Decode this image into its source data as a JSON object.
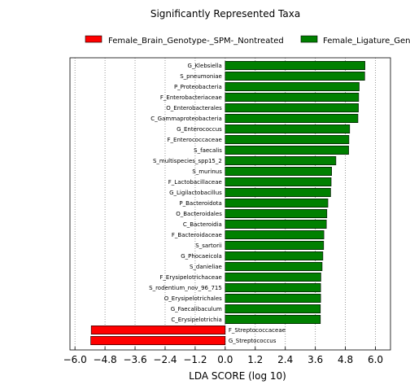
{
  "chart_data": {
    "type": "bar",
    "orientation": "horizontal",
    "title": "Significantly Represented Taxa",
    "xlabel": "LDA SCORE (log 10)",
    "ylabel": "",
    "xlim": [
      -6.2,
      6.6
    ],
    "xticks": [
      "−6.0",
      "−4.8",
      "−3.6",
      "−2.4",
      "−1.2",
      "0.0",
      "1.2",
      "2.4",
      "3.6",
      "4.8",
      "6.0"
    ],
    "xtick_values": [
      -6.0,
      -4.8,
      -3.6,
      -2.4,
      -1.2,
      0.0,
      1.2,
      2.4,
      3.6,
      4.8,
      6.0
    ],
    "grid": "vertical dotted",
    "legend_position": "top",
    "series": [
      {
        "name": "Female_Brain_Genotype-_SPM-_Nontreated",
        "color": "#ff0000"
      },
      {
        "name": "Female_Ligature_Genotype-_SPM-_Nontreated",
        "legend_visible_text": "Female_Ligature_Gen",
        "color": "#008000"
      }
    ],
    "categories": [
      "G_Klebsiella",
      "S_pneumoniae",
      "P_Proteobacteria",
      "F_Enterobacteriaceae",
      "O_Enterobacterales",
      "C_Gammaproteobacteria",
      "G_Enterococcus",
      "F_Enterococcaceae",
      "S_faecalis",
      "S_multispecies_spp15_2",
      "S_murinus",
      "F_Lactobacillaceae",
      "G_Ligilactobacillus",
      "P_Bacteroidota",
      "O_Bacteroidales",
      "C_Bacteroidia",
      "F_Bacteroidaceae",
      "S_sartorii",
      "G_Phocaeicola",
      "S_danieliae",
      "F_Erysipelotrichaceae",
      "S_rodentium_nov_96_715",
      "O_Erysipelotrichales",
      "G_Faecalibaculum",
      "C_Erysipelotrichia",
      "F_Streptococcaceae",
      "G_Streptococcus"
    ],
    "values": [
      5.58,
      5.57,
      5.35,
      5.33,
      5.32,
      5.3,
      4.97,
      4.94,
      4.93,
      4.42,
      4.25,
      4.23,
      4.21,
      4.1,
      4.06,
      4.04,
      3.94,
      3.93,
      3.9,
      3.87,
      3.82,
      3.81,
      3.81,
      3.8,
      3.8,
      -5.35,
      -5.37
    ],
    "group": [
      1,
      1,
      1,
      1,
      1,
      1,
      1,
      1,
      1,
      1,
      1,
      1,
      1,
      1,
      1,
      1,
      1,
      1,
      1,
      1,
      1,
      1,
      1,
      1,
      1,
      0,
      0
    ]
  }
}
